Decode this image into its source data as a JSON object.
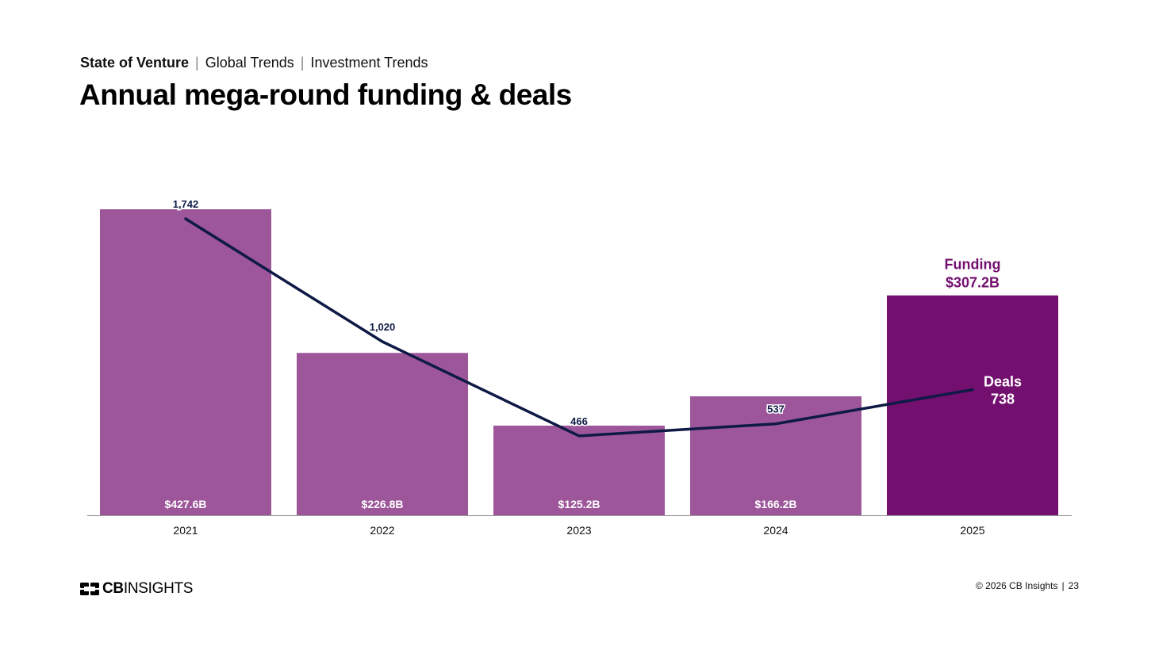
{
  "header": {
    "breadcrumb": [
      "State of Venture",
      "Global Trends",
      "Investment Trends"
    ],
    "separator": "|",
    "title": "Annual mega-round funding & deals"
  },
  "chart_data": {
    "type": "bar",
    "title": "Annual mega-round funding & deals",
    "categories": [
      "2021",
      "2022",
      "2023",
      "2024",
      "2025"
    ],
    "series": [
      {
        "name": "Funding",
        "type": "bar",
        "values": [
          427.6,
          226.8,
          125.2,
          166.2,
          307.2
        ],
        "labels": [
          "$427.6B",
          "$226.8B",
          "$125.2B",
          "$166.2B",
          "$307.2B"
        ]
      },
      {
        "name": "Deals",
        "type": "line",
        "values": [
          1742,
          1020,
          466,
          537,
          738
        ],
        "labels": [
          "1,742",
          "1,020",
          "466",
          "537",
          "738"
        ]
      }
    ],
    "highlight": {
      "category": "2025",
      "funding_title": "Funding",
      "funding_value": "$307.2B",
      "deals_title": "Deals",
      "deals_value": "738"
    },
    "ylim_funding": [
      0,
      427.6
    ],
    "ylim_deals": [
      0,
      1862
    ],
    "grid": false,
    "legend": "none",
    "colors": {
      "bar": "#9c5699",
      "bar_highlight": "#720f6f",
      "line": "#0e1a45",
      "axis": "#999999",
      "highlight_text": "#720f6f"
    }
  },
  "footer": {
    "logo_bold": "CB",
    "logo_light": "INSIGHTS",
    "copyright": "© 2026 CB Insights",
    "separator": "|",
    "page_number": "23"
  }
}
